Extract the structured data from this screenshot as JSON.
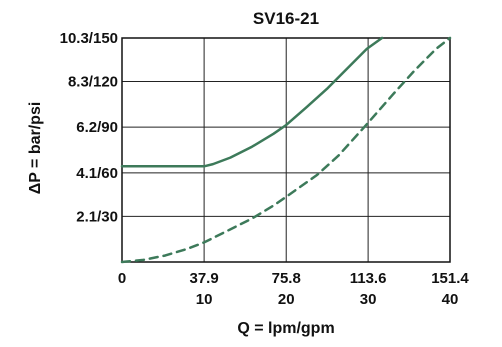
{
  "chart_data": {
    "type": "line",
    "title": "SV16-21",
    "xlabel": "Q = lpm/gpm",
    "ylabel": "ΔP = bar/psi",
    "xlim": [
      0,
      151.4
    ],
    "ylim": [
      0,
      10.3
    ],
    "grid": true,
    "x_ticks": [
      {
        "value": 0,
        "label": "0",
        "sublabel": ""
      },
      {
        "value": 37.9,
        "label": "37.9",
        "sublabel": "10"
      },
      {
        "value": 75.8,
        "label": "75.8",
        "sublabel": "20"
      },
      {
        "value": 113.6,
        "label": "113.6",
        "sublabel": "30"
      },
      {
        "value": 151.4,
        "label": "151.4",
        "sublabel": "40"
      }
    ],
    "y_ticks": [
      {
        "value": 2.1,
        "label": "2.1/30"
      },
      {
        "value": 4.1,
        "label": "4.1/60"
      },
      {
        "value": 6.2,
        "label": "6.2/90"
      },
      {
        "value": 8.3,
        "label": "8.3/120"
      },
      {
        "value": 10.3,
        "label": "10.3/150"
      }
    ],
    "series": [
      {
        "style": "solid",
        "color": "#3d7a5a",
        "x": [
          0,
          20,
          37.9,
          42,
          50,
          60,
          70,
          75.8,
          85,
          95,
          105,
          113,
          120
        ],
        "y": [
          4.4,
          4.4,
          4.4,
          4.5,
          4.8,
          5.3,
          5.9,
          6.3,
          7.1,
          8.0,
          9.0,
          9.8,
          10.3
        ]
      },
      {
        "style": "dashed",
        "color": "#3d7a5a",
        "x": [
          0,
          10,
          20,
          30,
          37.9,
          50,
          60,
          70,
          75.8,
          90,
          100,
          113.6,
          125,
          135,
          145,
          151.4
        ],
        "y": [
          0.0,
          0.1,
          0.3,
          0.6,
          0.9,
          1.5,
          2.0,
          2.6,
          3.0,
          4.0,
          4.9,
          6.4,
          7.7,
          8.8,
          9.8,
          10.3
        ]
      }
    ]
  }
}
